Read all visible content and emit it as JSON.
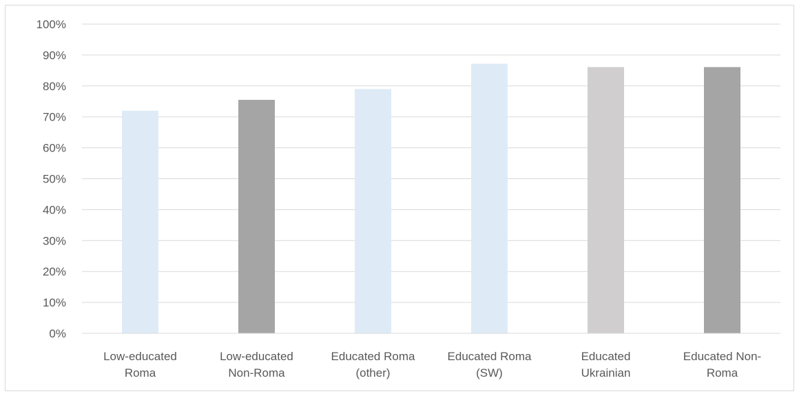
{
  "chart_data": {
    "type": "bar",
    "title": "",
    "xlabel": "",
    "ylabel": "",
    "ylim": [
      0,
      1
    ],
    "y_ticks": [
      "0%",
      "10%",
      "20%",
      "30%",
      "40%",
      "50%",
      "60%",
      "70%",
      "80%",
      "90%",
      "100%"
    ],
    "grid": "horizontal",
    "legend": "none",
    "categories": [
      [
        "Low-educated",
        "Roma"
      ],
      [
        "Low-educated",
        "Non-Roma"
      ],
      [
        "Educated Roma",
        "(other)"
      ],
      [
        "Educated Roma",
        "(SW)"
      ],
      [
        "Educated",
        "Ukrainian"
      ],
      [
        "Educated Non-",
        "Roma"
      ]
    ],
    "values": [
      0.72,
      0.755,
      0.79,
      0.872,
      0.861,
      0.861
    ],
    "bar_colors": [
      "#deebf7",
      "#a5a5a5",
      "#deebf7",
      "#deebf7",
      "#d0cece",
      "#a5a5a5"
    ],
    "gridline_color": "#d9d9d9",
    "axis_color": "#d9d9d9"
  }
}
